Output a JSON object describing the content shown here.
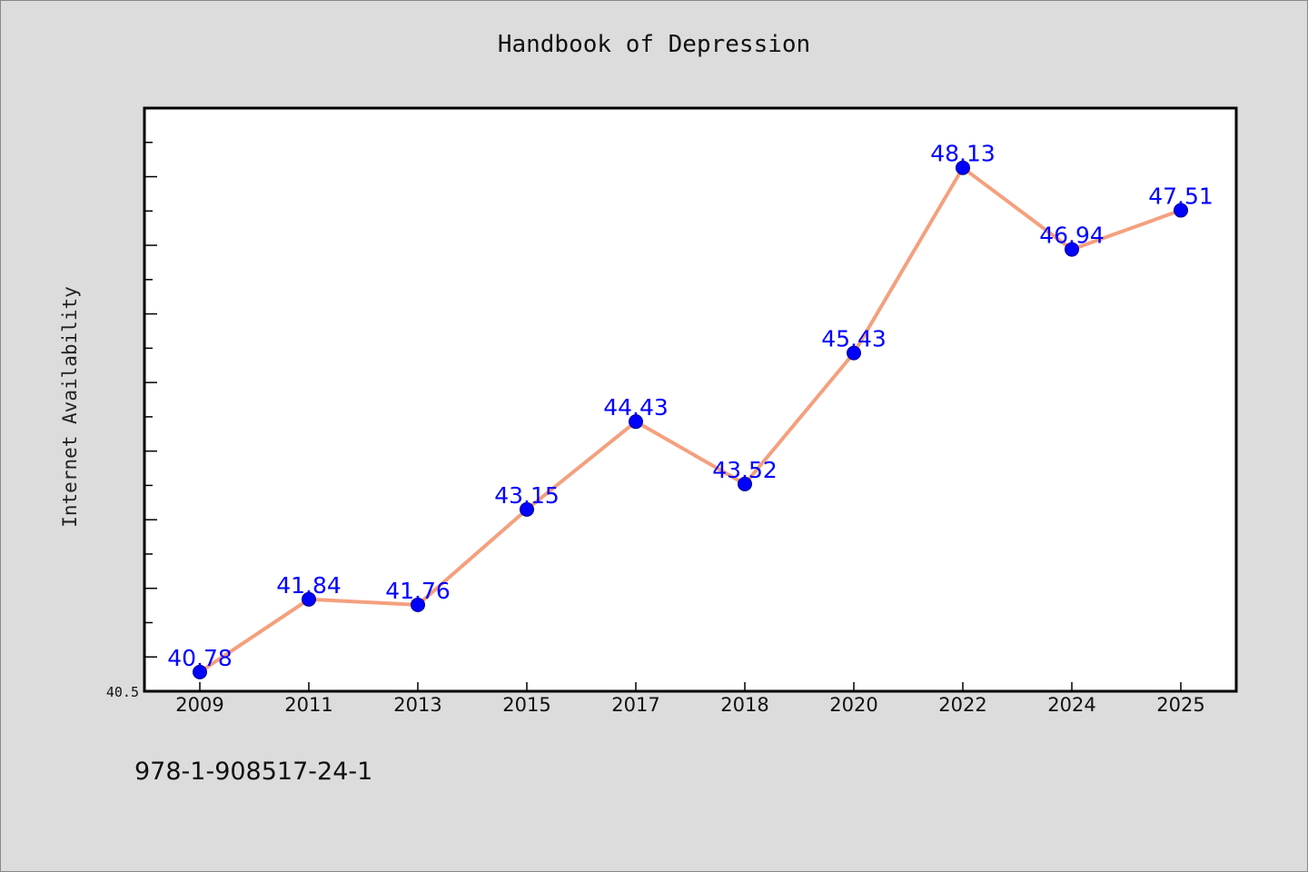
{
  "title": "Handbook of Depression",
  "footer": "978-1-908517-24-1",
  "colors": {
    "background": "#dcdcdc",
    "plot_background": "#ffffff",
    "line": "#f4a07e",
    "marker": "#0000ff",
    "label": "#0000ff"
  },
  "chart_data": {
    "type": "line",
    "title": "Handbook of Depression",
    "xlabel": "",
    "ylabel": "Internet Availability",
    "categories": [
      "2009",
      "2011",
      "2013",
      "2015",
      "2017",
      "2018",
      "2020",
      "2022",
      "2024",
      "2025"
    ],
    "series": [
      {
        "values": [
          40.78,
          41.84,
          41.76,
          43.15,
          44.43,
          43.52,
          45.43,
          48.13,
          46.94,
          47.51
        ],
        "labels": [
          "40.78",
          "41.84",
          "41.76",
          "43.15",
          "44.43",
          "43.52",
          "45.43",
          "48.13",
          "46.94",
          "47.51"
        ]
      }
    ],
    "ylim": [
      40.5,
      49.0
    ],
    "y_tick_label": "40.5",
    "y_minor_tick_step": 0.5,
    "grid": false,
    "legend": "none"
  }
}
